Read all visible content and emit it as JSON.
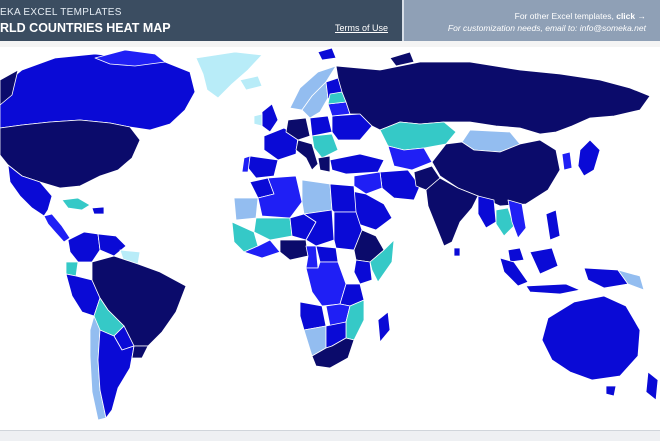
{
  "header": {
    "brand": "EKA EXCEL TEMPLATES",
    "title": "RLD COUNTRIES HEAT MAP",
    "terms_link": "Terms of Use",
    "promo_text": "For other Excel templates, ",
    "promo_link": "click →",
    "contact_text": "For customization needs, email to: info@someka.net"
  },
  "colors": {
    "header_dark": "#3b4d61",
    "header_light": "#8fa0b6",
    "scale_darkest": "#0b0b6b",
    "scale_dark": "#0a0ad6",
    "scale_medium": "#1f1ff5",
    "scale_light": "#93bdf0",
    "scale_teal": "#35c9c7",
    "scale_pale": "#b8ecf8"
  }
}
